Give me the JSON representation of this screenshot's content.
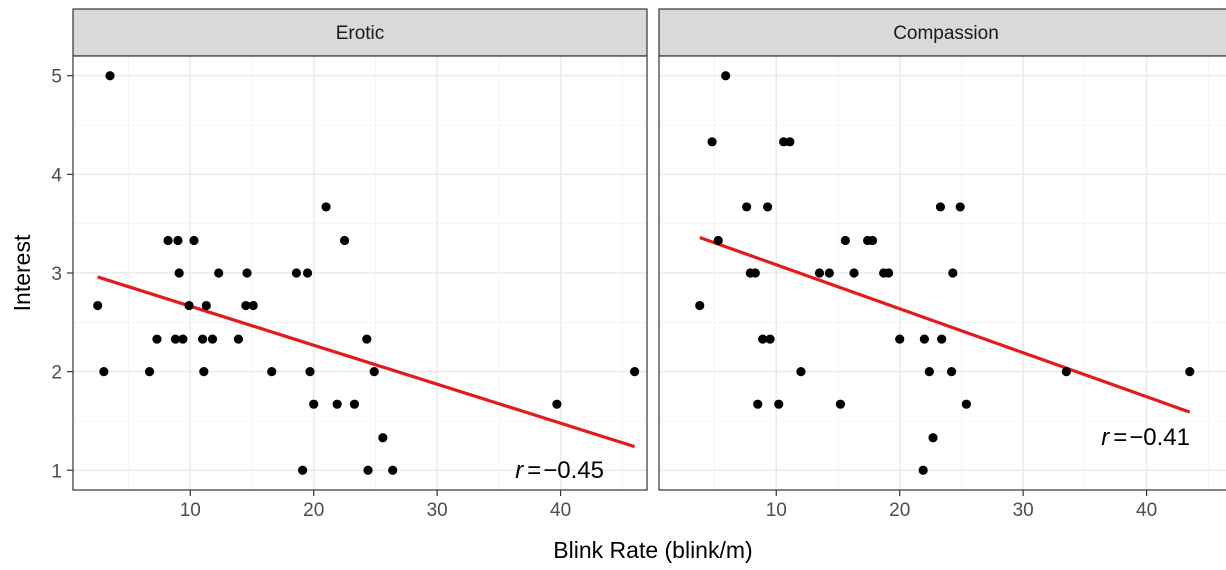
{
  "chart_data": {
    "type": "scatter",
    "xlabel": "Blink Rate (blink/m)",
    "ylabel": "Interest",
    "xlim": [
      0.5,
      47
    ],
    "ylim": [
      0.8,
      5.2
    ],
    "xticks": [
      10,
      20,
      30,
      40
    ],
    "yticks": [
      1,
      2,
      3,
      4,
      5
    ],
    "grid": true,
    "colors": {
      "points": "#000000",
      "fit": "#e41a1c",
      "strip": "#d9d9d9"
    },
    "panels": [
      {
        "title": "Erotic",
        "annotation": {
          "r_label": "r",
          "equals": "=",
          "value": "−0.45"
        },
        "fit": {
          "x": [
            2.5,
            46.0
          ],
          "y": [
            2.96,
            1.24
          ]
        },
        "points": [
          [
            2.5,
            2.67
          ],
          [
            3.0,
            2.0
          ],
          [
            3.5,
            5.0
          ],
          [
            6.7,
            2.0
          ],
          [
            7.3,
            2.33
          ],
          [
            8.2,
            3.33
          ],
          [
            8.8,
            2.33
          ],
          [
            9.0,
            3.33
          ],
          [
            9.1,
            3.0
          ],
          [
            9.4,
            2.33
          ],
          [
            9.9,
            2.67
          ],
          [
            10.3,
            3.33
          ],
          [
            11.0,
            2.33
          ],
          [
            11.1,
            2.0
          ],
          [
            11.3,
            2.67
          ],
          [
            11.8,
            2.33
          ],
          [
            12.3,
            3.0
          ],
          [
            13.9,
            2.33
          ],
          [
            14.5,
            2.67
          ],
          [
            14.6,
            3.0
          ],
          [
            15.1,
            2.67
          ],
          [
            16.6,
            2.0
          ],
          [
            18.6,
            3.0
          ],
          [
            19.1,
            1.0
          ],
          [
            19.5,
            3.0
          ],
          [
            19.7,
            2.0
          ],
          [
            20.0,
            1.67
          ],
          [
            21.0,
            3.67
          ],
          [
            21.9,
            1.67
          ],
          [
            22.5,
            3.33
          ],
          [
            23.3,
            1.67
          ],
          [
            24.3,
            2.33
          ],
          [
            24.4,
            1.0
          ],
          [
            24.9,
            2.0
          ],
          [
            25.6,
            1.33
          ],
          [
            26.4,
            1.0
          ],
          [
            39.7,
            1.67
          ],
          [
            46.0,
            2.0
          ]
        ]
      },
      {
        "title": "Compassion",
        "annotation": {
          "r_label": "r",
          "equals": "=",
          "value": "−0.41"
        },
        "fit": {
          "x": [
            3.8,
            43.5
          ],
          "y": [
            3.36,
            1.59
          ]
        },
        "points": [
          [
            3.8,
            2.67
          ],
          [
            4.8,
            4.33
          ],
          [
            5.3,
            3.33
          ],
          [
            5.9,
            5.0
          ],
          [
            7.6,
            3.67
          ],
          [
            7.9,
            3.0
          ],
          [
            8.3,
            3.0
          ],
          [
            8.5,
            1.67
          ],
          [
            8.9,
            2.33
          ],
          [
            9.3,
            3.67
          ],
          [
            9.5,
            2.33
          ],
          [
            10.2,
            1.67
          ],
          [
            10.6,
            4.33
          ],
          [
            11.1,
            4.33
          ],
          [
            12.0,
            2.0
          ],
          [
            13.5,
            3.0
          ],
          [
            14.3,
            3.0
          ],
          [
            15.2,
            1.67
          ],
          [
            15.6,
            3.33
          ],
          [
            16.3,
            3.0
          ],
          [
            17.4,
            3.33
          ],
          [
            17.8,
            3.33
          ],
          [
            18.7,
            3.0
          ],
          [
            19.1,
            3.0
          ],
          [
            20.0,
            2.33
          ],
          [
            21.9,
            1.0
          ],
          [
            22.0,
            2.33
          ],
          [
            22.4,
            2.0
          ],
          [
            22.7,
            1.33
          ],
          [
            23.3,
            3.67
          ],
          [
            23.4,
            2.33
          ],
          [
            24.2,
            2.0
          ],
          [
            24.3,
            3.0
          ],
          [
            24.9,
            3.67
          ],
          [
            25.4,
            1.67
          ],
          [
            33.5,
            2.0
          ],
          [
            43.5,
            2.0
          ]
        ]
      }
    ]
  }
}
